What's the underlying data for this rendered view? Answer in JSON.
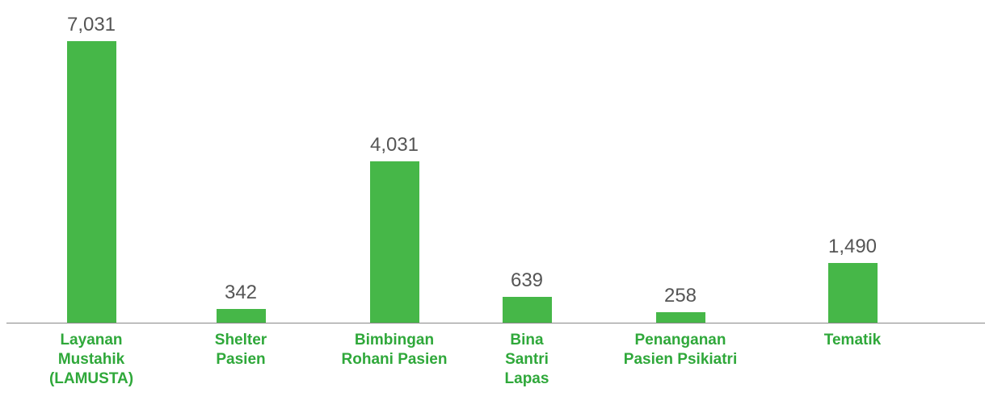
{
  "chart_data": {
    "type": "bar",
    "categories": [
      "Layanan Mustahik (LAMUSTA)",
      "Shelter Pasien",
      "Bimbingan Rohani Pasien",
      "Bina Santri Lapas",
      "Penanganan Pasien Psikiatri",
      "Tematik"
    ],
    "values": [
      7031,
      342,
      4031,
      639,
      258,
      1490
    ],
    "value_labels": [
      "7,031",
      "342",
      "4,031",
      "639",
      "258",
      "1,490"
    ],
    "color": "#46b748",
    "ylim": [
      0,
      7500
    ]
  }
}
